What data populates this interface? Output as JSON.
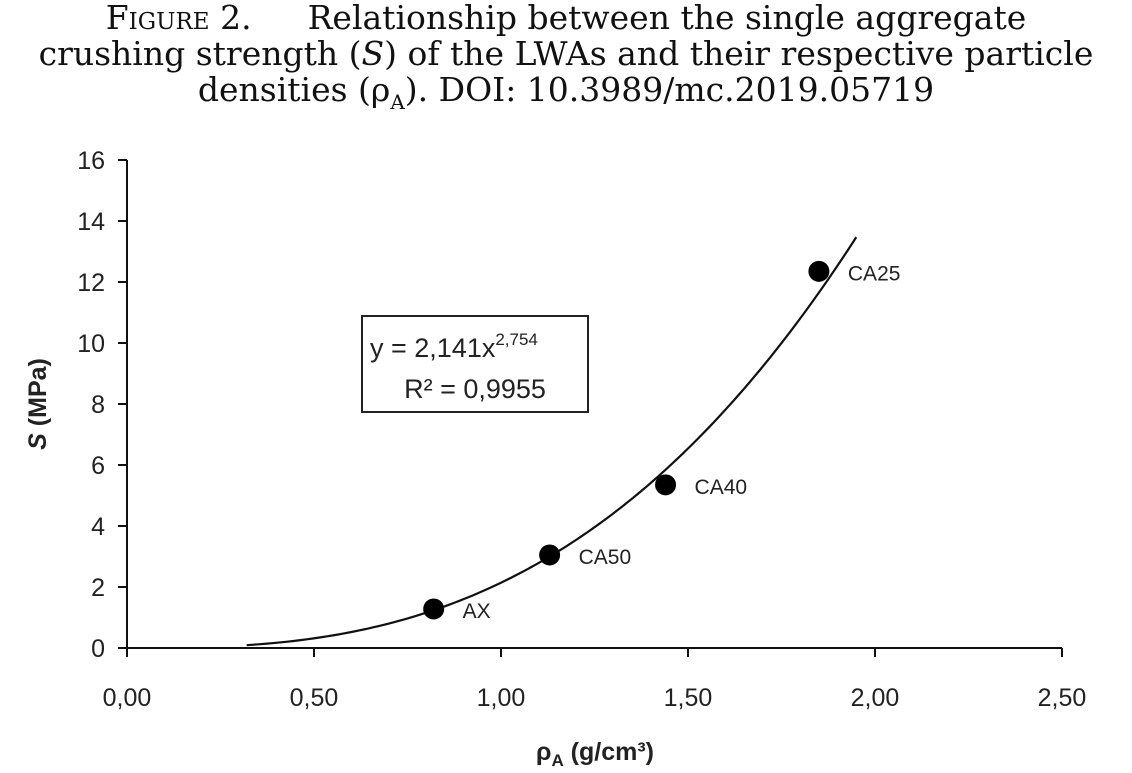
{
  "caption": {
    "figure_label": "Figure 2.",
    "line1": "Relationship between the single aggregate",
    "line2_a": "crushing strength (",
    "line2_s": "S",
    "line2_b": ") of the LWAs and their respective particle",
    "line3_a": "densities (ρ",
    "line3_sub": "A",
    "line3_b": "). DOI: 10.3989/mc.2019.05719"
  },
  "chart_data": {
    "type": "scatter",
    "xlabel_main": "ρ",
    "xlabel_sub": "A",
    "xlabel_rest": " (g/cm³)",
    "ylabel_italic": "S",
    "ylabel_rest": " (MPa)",
    "xlim": [
      0,
      2.5
    ],
    "ylim": [
      0,
      16
    ],
    "x_ticks": [
      0,
      0.5,
      1.0,
      1.5,
      2.0,
      2.5
    ],
    "x_tick_labels": [
      "0,00",
      "0,50",
      "1,00",
      "1,50",
      "2,00",
      "2,50"
    ],
    "y_ticks": [
      0,
      2,
      4,
      6,
      8,
      10,
      12,
      14,
      16
    ],
    "y_tick_labels": [
      "0",
      "2",
      "4",
      "6",
      "8",
      "10",
      "12",
      "14",
      "16"
    ],
    "grid": false,
    "points": [
      {
        "label": "AX",
        "x": 0.82,
        "y": 1.28
      },
      {
        "label": "CA50",
        "x": 1.13,
        "y": 3.05
      },
      {
        "label": "CA40",
        "x": 1.44,
        "y": 5.35
      },
      {
        "label": "CA25",
        "x": 1.85,
        "y": 12.35
      }
    ],
    "fit": {
      "model": "power",
      "a": 2.141,
      "b": 2.754,
      "x_range": [
        0.32,
        1.95
      ],
      "equation_base": "y = 2,141x",
      "equation_exponent": "2,754",
      "r2_text": "R² = 0,9955"
    }
  },
  "colors": {
    "ink": "#111111",
    "marker": "#000000",
    "background": "#ffffff"
  }
}
